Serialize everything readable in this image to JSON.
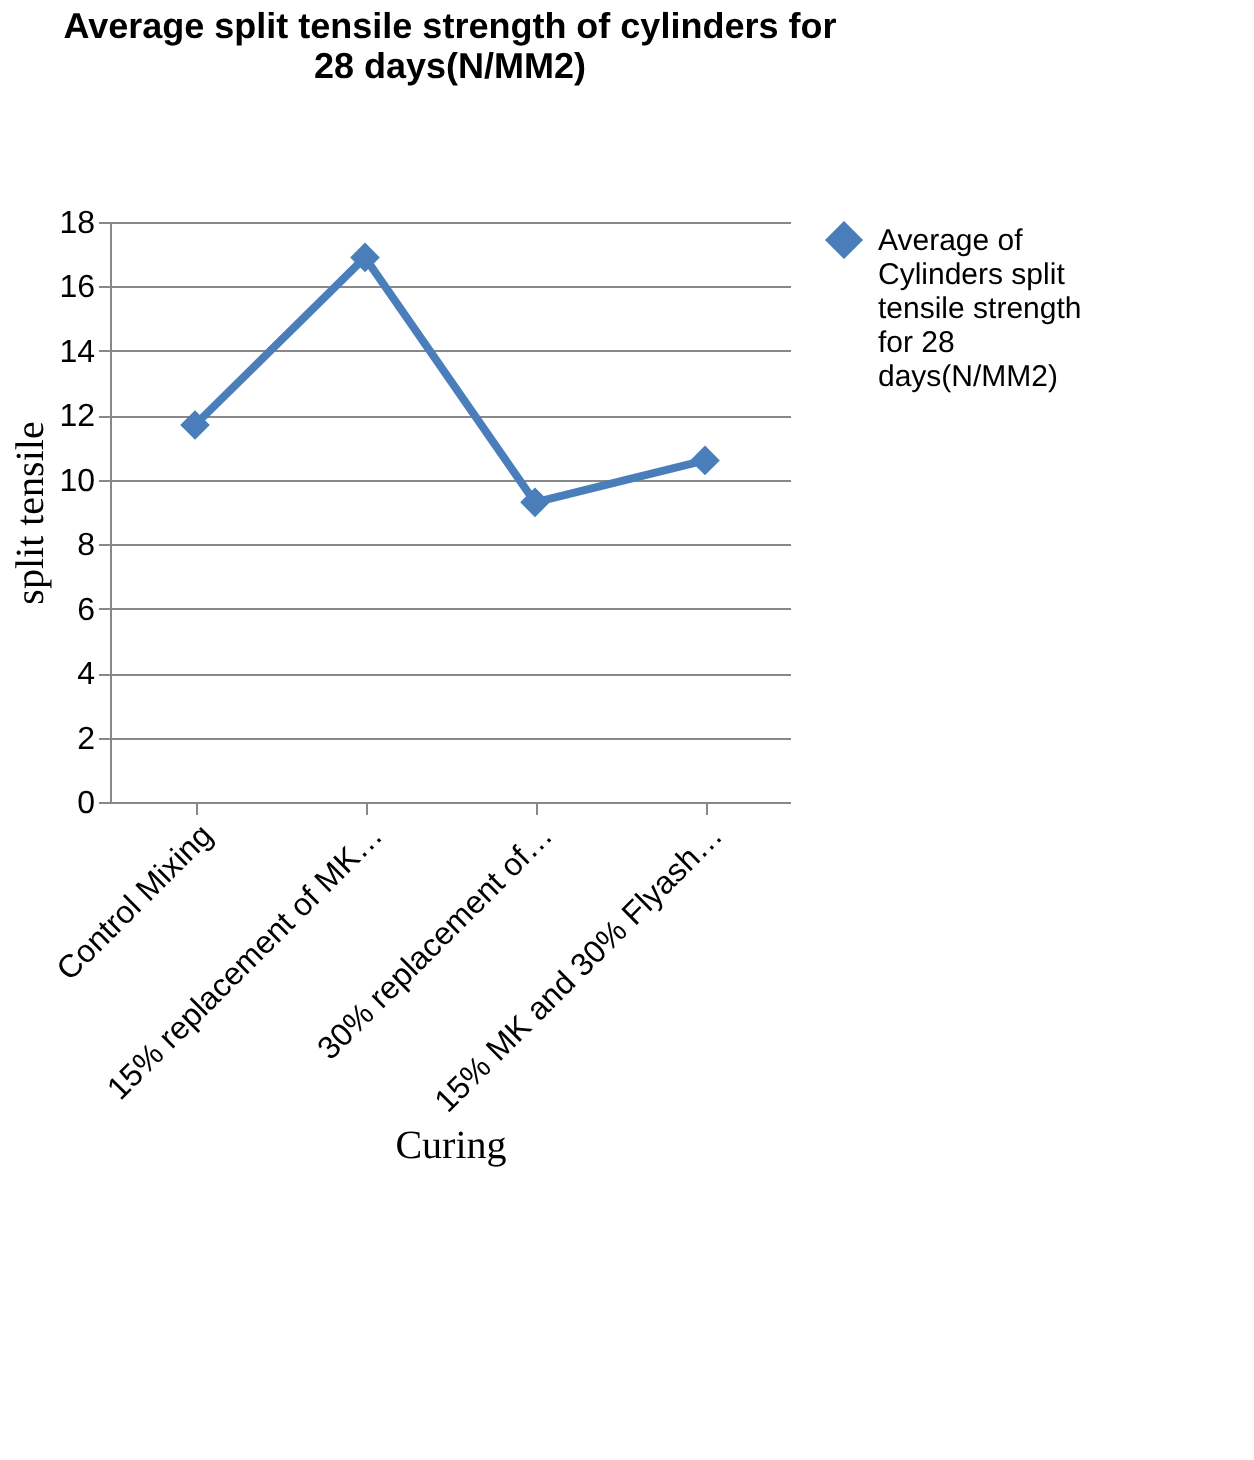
{
  "chart_data": {
    "type": "line",
    "title": "Average split tensile strength of cylinders for 28 days(N/MM2)",
    "xlabel": "Curing",
    "ylabel": "split tensile",
    "categories": [
      "Control Mixing",
      "15% replacement of MK…",
      "30% replacement of…",
      "15% MK and 30% Flyash…"
    ],
    "series": [
      {
        "name": "Average of Cylinders split tensile strength for 28 days(N/MM2)",
        "color": "#4a7ebb",
        "values": [
          11.7,
          16.9,
          9.3,
          10.6
        ]
      }
    ],
    "ylim": [
      0,
      18
    ],
    "yticks": [
      0,
      2,
      4,
      6,
      8,
      10,
      12,
      14,
      16,
      18
    ],
    "grid": "y",
    "legend": "right",
    "marker": "diamond",
    "line_style": "solid"
  }
}
